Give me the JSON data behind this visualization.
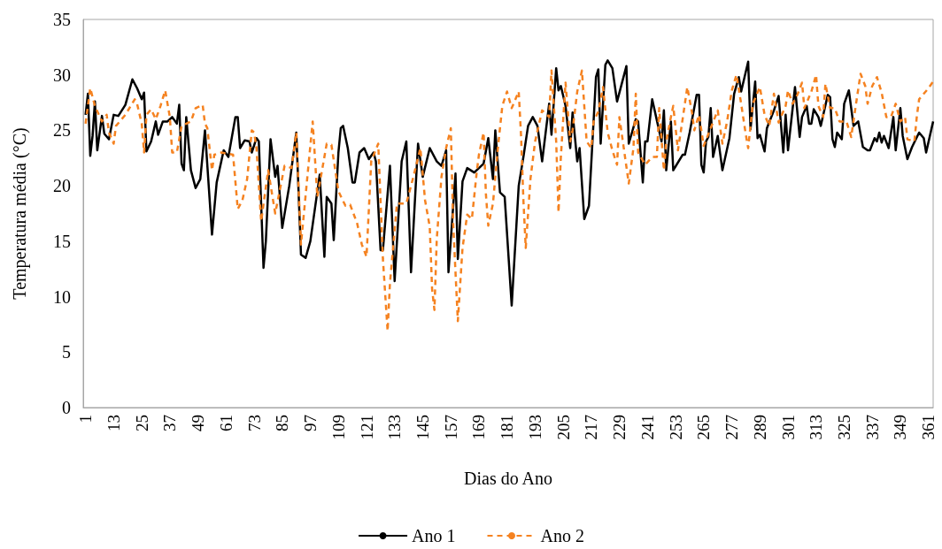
{
  "chart_data": {
    "type": "line",
    "xlabel": "Dias do Ano",
    "ylabel": "Temperatura média (°C)",
    "xlim": [
      0,
      363
    ],
    "xticks": [
      1,
      13,
      25,
      37,
      49,
      61,
      73,
      85,
      97,
      109,
      121,
      133,
      145,
      157,
      169,
      181,
      193,
      205,
      217,
      229,
      241,
      253,
      265,
      277,
      289,
      301,
      313,
      325,
      337,
      349,
      361
    ],
    "ylim": [
      0,
      35
    ],
    "yticks": [
      0,
      5,
      10,
      15,
      20,
      25,
      30,
      35
    ],
    "grid": false,
    "legend": "bottom",
    "series": [
      {
        "name": "Ano 1",
        "color": "#000000",
        "line_style": "solid",
        "x": [
          1,
          2,
          3,
          4,
          5,
          6,
          8,
          9,
          11,
          13,
          15,
          18,
          21,
          23,
          25,
          26,
          27,
          29,
          31,
          32,
          34,
          36,
          38,
          40,
          41,
          42,
          43,
          44,
          46,
          48,
          50,
          52,
          55,
          57,
          60,
          62,
          65,
          66,
          67,
          69,
          71,
          72,
          74,
          75,
          77,
          78,
          80,
          82,
          83,
          85,
          88,
          91,
          93,
          95,
          97,
          101,
          103,
          104,
          106,
          107,
          109,
          110,
          111,
          113,
          115,
          116,
          118,
          120,
          122,
          124,
          125,
          127,
          128,
          131,
          133,
          136,
          138,
          140,
          143,
          145,
          148,
          151,
          153,
          155,
          156,
          159,
          160,
          162,
          164,
          167,
          171,
          173,
          175,
          176,
          178,
          180,
          183,
          186,
          188,
          190,
          192,
          194,
          196,
          199,
          200,
          202,
          203,
          204,
          206,
          208,
          209,
          211,
          212,
          214,
          216,
          219,
          220,
          221,
          223,
          224,
          226,
          228,
          232,
          233,
          236,
          237,
          239,
          240,
          241,
          243,
          245,
          247,
          248,
          249,
          251,
          252,
          256,
          257,
          259,
          262,
          263,
          264,
          265,
          266,
          267,
          268,
          269,
          271,
          273,
          276,
          278,
          280,
          281,
          284,
          285,
          287,
          288,
          289,
          291,
          292,
          295,
          297,
          299,
          300,
          301,
          304,
          306,
          307,
          309,
          310,
          311,
          312,
          314,
          315,
          318,
          319,
          320,
          321,
          322,
          324,
          325,
          327,
          329,
          331,
          333,
          335,
          336,
          338,
          339,
          340,
          341,
          342,
          344,
          346,
          347,
          349,
          350,
          352,
          354,
          357,
          359,
          360,
          363
        ],
        "values": [
          26.4,
          28.3,
          22.7,
          24.5,
          27.6,
          23.2,
          26.3,
          24.7,
          24.2,
          26.4,
          26.3,
          27.3,
          29.6,
          28.8,
          27.8,
          28.4,
          23.1,
          24.0,
          25.8,
          24.6,
          25.8,
          25.8,
          26.2,
          25.6,
          27.3,
          22.0,
          21.4,
          26.2,
          21.4,
          19.8,
          20.6,
          25.0,
          15.6,
          20.3,
          23.2,
          22.6,
          26.2,
          26.2,
          23.4,
          24.1,
          24.0,
          23.0,
          24.3,
          24.0,
          12.6,
          15.0,
          24.2,
          20.8,
          21.8,
          16.2,
          20.0,
          24.8,
          13.8,
          13.5,
          15.0,
          21.0,
          13.6,
          19.0,
          18.4,
          15.1,
          23.0,
          25.2,
          25.4,
          23.4,
          20.3,
          20.3,
          23.0,
          23.4,
          22.4,
          23.0,
          22.2,
          14.2,
          14.2,
          21.8,
          11.4,
          22.2,
          24.0,
          12.2,
          23.8,
          20.8,
          23.4,
          22.2,
          21.8,
          23.2,
          12.2,
          21.1,
          13.4,
          20.4,
          21.6,
          21.2,
          22.0,
          24.3,
          20.6,
          25.0,
          19.4,
          19.0,
          9.2,
          20.0,
          22.6,
          25.4,
          26.2,
          25.4,
          22.2,
          27.4,
          24.6,
          30.6,
          28.6,
          29.0,
          27.2,
          23.4,
          26.6,
          22.2,
          23.4,
          17.0,
          18.2,
          29.8,
          30.5,
          23.8,
          30.9,
          31.3,
          30.6,
          27.6,
          30.8,
          23.8,
          26.0,
          25.8,
          20.3,
          24.0,
          24.0,
          27.8,
          25.9,
          24.0,
          26.8,
          21.4,
          25.8,
          21.4,
          22.8,
          22.8,
          24.8,
          28.2,
          28.2,
          21.9,
          21.2,
          24.0,
          24.4,
          27.0,
          22.6,
          24.5,
          21.4,
          24.3,
          28.3,
          29.8,
          28.5,
          31.2,
          25.1,
          29.4,
          24.3,
          24.6,
          23.1,
          25.2,
          26.8,
          28.1,
          23.0,
          26.4,
          23.2,
          28.9,
          24.4,
          26.2,
          27.2,
          25.6,
          25.6,
          26.9,
          26.2,
          25.4,
          28.2,
          28.0,
          24.2,
          23.5,
          24.8,
          24.2,
          27.4,
          28.6,
          25.4,
          25.8,
          23.5,
          23.2,
          23.2,
          24.3,
          24.0,
          24.8,
          23.9,
          24.5,
          23.4,
          26.2,
          23.2,
          27.0,
          24.5,
          22.4,
          23.5,
          24.8,
          24.3,
          23.0,
          25.8
        ]
      },
      {
        "name": "Ano 2",
        "color": "#f58220",
        "line_style": "dashed",
        "x": [
          1,
          3,
          5,
          8,
          10,
          11,
          13,
          14,
          18,
          22,
          23,
          25,
          26,
          27,
          29,
          31,
          33,
          35,
          37,
          38,
          40,
          42,
          46,
          48,
          51,
          52,
          53,
          55,
          56,
          59,
          64,
          66,
          68,
          70,
          72,
          73,
          74,
          76,
          79,
          82,
          86,
          89,
          91,
          93,
          96,
          98,
          100,
          104,
          106,
          109,
          112,
          114,
          117,
          119,
          121,
          123,
          126,
          128,
          130,
          131,
          134,
          138,
          141,
          144,
          146,
          148,
          149,
          150,
          151,
          153,
          155,
          157,
          158,
          160,
          162,
          164,
          166,
          168,
          169,
          171,
          172,
          173,
          175,
          177,
          179,
          181,
          183,
          186,
          187,
          188,
          189,
          191,
          193,
          196,
          199,
          200,
          202,
          203,
          204,
          206,
          208,
          209,
          211,
          213,
          215,
          217,
          218,
          220,
          222,
          224,
          226,
          228,
          229,
          231,
          233,
          235,
          236,
          237,
          240,
          243,
          245,
          246,
          248,
          249,
          251,
          252,
          254,
          256,
          258,
          260,
          261,
          263,
          265,
          268,
          271,
          273,
          275,
          277,
          279,
          281,
          283,
          284,
          286,
          289,
          291,
          293,
          295,
          297,
          300,
          301,
          303,
          305,
          307,
          308,
          311,
          313,
          314,
          316,
          317,
          319,
          321,
          323,
          326,
          328,
          330,
          332,
          334,
          335,
          337,
          339,
          341,
          343,
          345,
          347,
          349,
          351,
          352,
          355,
          356,
          357,
          361,
          363
        ],
        "values": [
          25.6,
          28.8,
          27.2,
          25.8,
          26.4,
          24.8,
          23.8,
          25.4,
          26.4,
          27.8,
          27.4,
          25.6,
          23.0,
          26.4,
          26.9,
          26.0,
          27.2,
          28.6,
          26.2,
          23.0,
          23.0,
          25.4,
          25.8,
          27.0,
          27.3,
          25.6,
          25.2,
          21.4,
          22.8,
          23.0,
          22.8,
          17.9,
          18.7,
          20.6,
          25.0,
          24.8,
          23.4,
          16.8,
          21.4,
          17.5,
          21.8,
          21.6,
          24.8,
          14.7,
          21.4,
          25.8,
          19.0,
          23.8,
          23.7,
          19.5,
          18.2,
          18.3,
          16.6,
          14.7,
          13.6,
          22.2,
          23.8,
          13.4,
          6.9,
          11.2,
          18.4,
          18.4,
          20.8,
          23.4,
          18.7,
          16.3,
          10.7,
          8.8,
          15.2,
          20.8,
          23.4,
          25.2,
          16.6,
          7.8,
          14.4,
          17.4,
          17.0,
          21.1,
          22.8,
          24.8,
          19.2,
          16.4,
          18.4,
          23.2,
          27.2,
          28.5,
          27.0,
          28.5,
          24.5,
          18.7,
          14.4,
          20.6,
          24.0,
          26.8,
          26.2,
          30.4,
          24.0,
          17.6,
          22.6,
          29.3,
          24.0,
          25.0,
          28.5,
          30.4,
          24.0,
          23.4,
          25.8,
          26.7,
          28.9,
          24.8,
          23.2,
          21.9,
          26.2,
          23.2,
          20.2,
          23.4,
          28.3,
          23.0,
          21.9,
          22.6,
          22.6,
          27.0,
          21.4,
          24.0,
          26.2,
          27.2,
          23.2,
          26.0,
          28.9,
          26.6,
          25.0,
          26.4,
          23.6,
          25.2,
          26.8,
          23.8,
          25.8,
          28.6,
          30.0,
          27.4,
          24.6,
          23.4,
          27.4,
          28.9,
          26.4,
          25.4,
          28.3,
          25.7,
          27.2,
          28.6,
          27.4,
          28.2,
          29.3,
          27.0,
          28.5,
          30.0,
          27.2,
          26.2,
          29.2,
          27.0,
          27.0,
          25.8,
          25.8,
          24.4,
          27.3,
          30.1,
          29.0,
          27.4,
          29.0,
          29.8,
          28.4,
          26.2,
          26.2,
          27.4,
          25.8,
          26.2,
          24.2,
          24.0,
          26.2,
          27.8,
          28.8,
          29.4
        ]
      }
    ]
  }
}
